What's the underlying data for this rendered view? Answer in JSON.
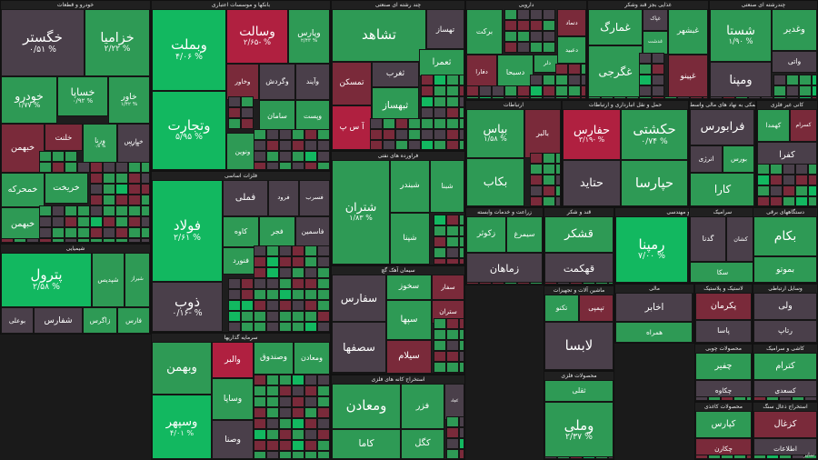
{
  "chart_data": {
    "type": "heatmap",
    "color_scale": {
      "deep_red": "#b02040",
      "red": "#7a2a3a",
      "neutral": "#4a3f4a",
      "green": "#2e9a55",
      "bright_green": "#12b860"
    },
    "sectors": [
      {
        "id": "auto",
        "title": "خودرو و قطعات",
        "stocks": [
          {
            "name": "خگستر",
            "pct": "۰/۵۱ %",
            "val": 0.51
          },
          {
            "name": "خزامیا",
            "pct": "۲/۲۲ %",
            "val": 2.22
          },
          {
            "name": "خساپا",
            "pct": "۰/۹۲ %",
            "val": 0.92
          },
          {
            "name": "خودرو",
            "pct": "۱/۷۷ %",
            "val": 1.77
          },
          {
            "name": "خاور",
            "pct": "۱/۴۲ %",
            "val": 1.42
          },
          {
            "name": "ورنا",
            "pct": "۰/۸ %",
            "val": 0.8
          },
          {
            "name": "خپارس",
            "pct": "۰/۶ %",
            "val": 0.6
          },
          {
            "name": "خبهمن",
            "pct": "",
            "val": -0.9
          },
          {
            "name": "خلنت",
            "pct": "",
            "val": -0.4
          },
          {
            "name": "خمحرکه",
            "pct": "",
            "val": 1.2
          },
          {
            "name": "خریخت",
            "pct": "",
            "val": 0.9
          },
          {
            "name": "خبهمن",
            "pct": "",
            "val": 1.1
          }
        ]
      },
      {
        "id": "chem",
        "title": "شیمیایی",
        "stocks": [
          {
            "name": "پترول",
            "pct": "۲/۵۸ %",
            "val": 2.58
          },
          {
            "name": "شپدیس",
            "pct": "",
            "val": 1.4
          },
          {
            "name": "شیراز",
            "pct": "",
            "val": 1.6
          },
          {
            "name": "بوعلی",
            "pct": "",
            "val": 0.2
          },
          {
            "name": "شفارس",
            "pct": "",
            "val": 0.3
          },
          {
            "name": "زاگرس",
            "pct": "",
            "val": 1.1
          },
          {
            "name": "فارس",
            "pct": "",
            "val": 1.3
          },
          {
            "name": "شاوان",
            "pct": "",
            "val": 1.5
          },
          {
            "name": "شیران",
            "pct": "",
            "val": 0.2
          },
          {
            "name": "شکلر",
            "pct": "",
            "val": -0.8
          }
        ]
      },
      {
        "id": "bank",
        "title": "بانکها و موسسات اعتباری",
        "stocks": [
          {
            "name": "وبملت",
            "pct": "۴/۰۶ %",
            "val": 4.06
          },
          {
            "name": "وسالت",
            "pct": "۲/۶۵- %",
            "val": -2.65
          },
          {
            "name": "وپارس",
            "pct": "۲/۴۳ %",
            "val": 2.43
          },
          {
            "name": "وتجارت",
            "pct": "۵/۹۵ %",
            "val": 5.95
          },
          {
            "name": "وخاور",
            "pct": "",
            "val": -0.6
          },
          {
            "name": "وگردش",
            "pct": "",
            "val": 0.2
          },
          {
            "name": "وآیند",
            "pct": "",
            "val": 0.3
          },
          {
            "name": "سامان",
            "pct": "",
            "val": 1.4
          },
          {
            "name": "ونوین",
            "pct": "",
            "val": 0.9
          },
          {
            "name": "وپست",
            "pct": "",
            "val": 1.6
          }
        ]
      },
      {
        "id": "metal",
        "title": "فلزات اساسی",
        "stocks": [
          {
            "name": "فولاد",
            "pct": "۲/۶۱ %",
            "val": 2.61
          },
          {
            "name": "فملی",
            "pct": "",
            "val": 0.3
          },
          {
            "name": "فرود",
            "pct": "",
            "val": 0.2
          },
          {
            "name": "فسرب",
            "pct": "",
            "val": 0.4
          },
          {
            "name": "ذوب",
            "pct": "۰/۱۶- %",
            "val": -0.16
          },
          {
            "name": "کاوه",
            "pct": "",
            "val": 1.6
          },
          {
            "name": "فجر",
            "pct": "",
            "val": 1.3
          },
          {
            "name": "فاسمین",
            "pct": "",
            "val": 0.5
          },
          {
            "name": "فنورد",
            "pct": "",
            "val": 1.1
          }
        ]
      },
      {
        "id": "invest",
        "title": "سرمایه گذاریها",
        "stocks": [
          {
            "name": "وبهمن",
            "pct": "",
            "val": 1.5
          },
          {
            "name": "والبر",
            "pct": "",
            "val": -2.2
          },
          {
            "name": "وصندوق",
            "pct": "",
            "val": 1.2
          },
          {
            "name": "ومعادن",
            "pct": "",
            "val": 1.6
          },
          {
            "name": "وسپهر",
            "pct": "۴/۰۱ %",
            "val": 4.01
          },
          {
            "name": "وساپا",
            "pct": "",
            "val": 0.9
          },
          {
            "name": "وخارزم",
            "pct": "",
            "val": 1.4
          },
          {
            "name": "وصنا",
            "pct": "",
            "val": 0.3
          }
        ]
      },
      {
        "id": "multi",
        "title": "چند رشته ای صنعتی",
        "stocks": [
          {
            "name": "تشاهد",
            "pct": "",
            "val": 1.4
          },
          {
            "name": "تهساز",
            "pct": "",
            "val": 0.3
          },
          {
            "name": "تمسکن",
            "pct": "",
            "val": -1.6
          },
          {
            "name": "ثغرب",
            "pct": "",
            "val": 0.2
          },
          {
            "name": "ثعمرا",
            "pct": "",
            "val": 1.2
          },
          {
            "name": "آ س پ",
            "pct": "",
            "val": -2.0
          },
          {
            "name": "ثبهساز",
            "pct": "",
            "val": 1.0
          }
        ]
      },
      {
        "id": "refine",
        "title": "فراورده های نفتی",
        "stocks": [
          {
            "name": "شتران",
            "pct": "۱/۸۳ %",
            "val": 1.83
          },
          {
            "name": "شبندر",
            "pct": "",
            "val": 1.3
          },
          {
            "name": "شبنا",
            "pct": "",
            "val": 1.6
          },
          {
            "name": "شپنا",
            "pct": "",
            "val": 1.4
          }
        ]
      },
      {
        "id": "cement",
        "title": "سیمان آهک گچ",
        "stocks": [
          {
            "name": "سفارس",
            "pct": "",
            "val": 0.4
          },
          {
            "name": "سخوز",
            "pct": "",
            "val": 1.0
          },
          {
            "name": "سفار",
            "pct": "",
            "val": -1.2
          },
          {
            "name": "ستران",
            "pct": "",
            "val": -1.0
          },
          {
            "name": "سصفها",
            "pct": "",
            "val": 0.3
          },
          {
            "name": "سپها",
            "pct": "",
            "val": 1.4
          },
          {
            "name": "سیلام",
            "pct": "",
            "val": -1.8
          }
        ]
      },
      {
        "id": "mining",
        "title": "استخراج کانه های فلزی",
        "stocks": [
          {
            "name": "ومعادن",
            "pct": "",
            "val": 1.4
          },
          {
            "name": "فزر",
            "pct": "",
            "val": 1.2
          },
          {
            "name": "کچاد",
            "pct": "",
            "val": 0.3
          },
          {
            "name": "کاما",
            "pct": "",
            "val": 1.1
          },
          {
            "name": "کگل",
            "pct": "",
            "val": 1.0
          }
        ]
      },
      {
        "id": "pharma",
        "title": "دارویی",
        "stocks": [
          {
            "name": "برکت",
            "pct": "",
            "val": 1.6
          },
          {
            "name": "دفارا",
            "pct": "",
            "val": -0.6
          },
          {
            "name": "دتماد",
            "pct": "",
            "val": -1.4
          },
          {
            "name": "دسبحا",
            "pct": "",
            "val": 1.2
          },
          {
            "name": "دلر",
            "pct": "",
            "val": 0.8
          },
          {
            "name": "دعبید",
            "pct": "",
            "val": 1.5
          }
        ]
      },
      {
        "id": "food",
        "title": "غذایی بجز قند وشکر",
        "stocks": [
          {
            "name": "غمارگ",
            "pct": "",
            "val": 1.1
          },
          {
            "name": "غپاک",
            "pct": "",
            "val": 0.6
          },
          {
            "name": "غبشهر",
            "pct": "",
            "val": 1.3
          },
          {
            "name": "غدشت",
            "pct": "",
            "val": 0.9
          },
          {
            "name": "غگرجی",
            "pct": "",
            "val": 1.4
          },
          {
            "name": "غپینو",
            "pct": "",
            "val": -0.4
          }
        ]
      },
      {
        "id": "oil",
        "title": "چندرشته ای صنعتی",
        "stocks": [
          {
            "name": "شستا",
            "pct": "۱/۹۰ %",
            "val": 1.9
          },
          {
            "name": "وغدیر",
            "pct": "",
            "val": 1.3
          },
          {
            "name": "واتی",
            "pct": "",
            "val": 0.4
          },
          {
            "name": "ومپنا",
            "pct": "",
            "val": 0.6
          }
        ]
      },
      {
        "id": "bulk",
        "title": "ارتباطات",
        "stocks": [
          {
            "name": "بپاس",
            "pct": "۱/۵۸ %",
            "val": 1.58
          },
          {
            "name": "بالبر",
            "pct": "",
            "val": -0.4
          },
          {
            "name": "بکاب",
            "pct": "",
            "val": 1.0
          }
        ]
      },
      {
        "id": "transport",
        "title": "حمل و نقل انبارداری و ارتباطات",
        "stocks": [
          {
            "name": "حفارس",
            "pct": "۳/۱۹- %",
            "val": -3.19
          },
          {
            "name": "حکشتی",
            "pct": "۰/۷۴ %",
            "val": 0.74
          },
          {
            "name": "حتاید",
            "pct": "",
            "val": 0.3
          },
          {
            "name": "حپارسا",
            "pct": "",
            "val": 1.2
          }
        ]
      },
      {
        "id": "computer",
        "title": "فعالیتهای کمکی به نهاد های مالی واسط",
        "stocks": [
          {
            "name": "فرابورس",
            "pct": "",
            "val": 0.6
          },
          {
            "name": "انرژی",
            "pct": "",
            "val": 0.2
          },
          {
            "name": "بورس",
            "pct": "",
            "val": 0.9
          },
          {
            "name": "کارا",
            "pct": "",
            "val": 1.3
          }
        ]
      },
      {
        "id": "tech",
        "title": "کانی غیر فلزی",
        "stocks": [
          {
            "name": "کهمدا",
            "pct": "",
            "val": 1.4
          },
          {
            "name": "کسرام",
            "pct": "",
            "val": -1.1
          },
          {
            "name": "کفرا",
            "pct": "",
            "val": 0.4
          }
        ]
      },
      {
        "id": "engineering",
        "title": "فنی و مهندسی",
        "stocks": [
          {
            "name": "رمپنا",
            "pct": "۷/۰۰ %",
            "val": 7.0
          },
          {
            "name": "کگاز",
            "pct": "",
            "val": 1.1
          },
          {
            "name": "کلاوه",
            "pct": "",
            "val": 0.9
          },
          {
            "name": "کحافظ",
            "pct": "",
            "val": 1.5
          }
        ]
      },
      {
        "id": "ceramic",
        "title": "سرامیک ",
        "stocks": [
          {
            "name": "گدنا",
            "pct": "",
            "val": 0.3
          },
          {
            "name": "کشان",
            "pct": "",
            "val": 0.2
          },
          {
            "name": "سکا",
            "pct": "",
            "val": 1.3
          }
        ]
      },
      {
        "id": "electronic",
        "title": "دستگاههای برقی",
        "stocks": [
          {
            "name": "بکام",
            "pct": "",
            "val": 1.5
          },
          {
            "name": "بموتو",
            "pct": "",
            "val": 0.8
          }
        ]
      },
      {
        "id": "media",
        "title": "زراعت و خدمات وابسته",
        "stocks": [
          {
            "name": "زکوثر",
            "pct": "",
            "val": 1.2
          },
          {
            "name": "سیمرغ",
            "pct": "",
            "val": 1.0
          },
          {
            "name": "زماهان",
            "pct": "",
            "val": 0.6
          }
        ]
      },
      {
        "id": "sugar",
        "title": "قند و شکر",
        "stocks": [
          {
            "name": "قشکر",
            "pct": "",
            "val": 0.9
          },
          {
            "name": "قهکمت",
            "pct": "",
            "val": 0.4
          }
        ]
      },
      {
        "id": "contract",
        "title": "مالی",
        "stocks": [
          {
            "name": "اخابر",
            "pct": "",
            "val": 0.2
          },
          {
            "name": "همراه",
            "pct": "",
            "val": 1.2
          }
        ]
      },
      {
        "id": "plastic",
        "title": "لاستیک و پلاستیک",
        "stocks": [
          {
            "name": "پکرمان",
            "pct": "",
            "val": -1.2
          },
          {
            "name": "پاسا",
            "pct": "",
            "val": 0.4
          }
        ]
      },
      {
        "id": "machinery",
        "title": "ماشین آلات و تجهیزات",
        "stocks": [
          {
            "name": "تکنو",
            "pct": "",
            "val": 1.3
          },
          {
            "name": "تپمپی",
            "pct": "",
            "val": -1.0
          },
          {
            "name": "لابسا",
            "pct": "",
            "val": 0.3
          }
        ]
      },
      {
        "id": "paper",
        "title": "وسایل ارتباطی",
        "stocks": [
          {
            "name": "ولی",
            "pct": "",
            "val": 0.6
          },
          {
            "name": "رتاپ",
            "pct": "",
            "val": 0.3
          }
        ]
      },
      {
        "id": "fin",
        "title": "محصولات فلزی",
        "stocks": [
          {
            "name": "ثقلی",
            "pct": "",
            "val": 0.9
          },
          {
            "name": "وملی",
            "pct": "۲/۳۷ %",
            "val": 2.37
          }
        ]
      },
      {
        "id": "woods",
        "title": "محصولات چوبی",
        "stocks": [
          {
            "name": "چفیر",
            "pct": "",
            "val": 1.4
          },
          {
            "name": "چکاوه",
            "pct": "",
            "val": 0.4
          }
        ]
      },
      {
        "id": "tile",
        "title": "کاشی و سرامیک",
        "stocks": [
          {
            "name": "کترام",
            "pct": "",
            "val": 1.3
          },
          {
            "name": "کسعدی",
            "pct": "",
            "val": 0.5
          }
        ]
      },
      {
        "id": "textile",
        "title": "محصولات کاغذی",
        "stocks": [
          {
            "name": "کپارس",
            "pct": "",
            "val": 0.7
          },
          {
            "name": "چکارن",
            "pct": "",
            "val": -1.2
          }
        ]
      },
      {
        "id": "mining2",
        "title": "استخراج ذغال سنگ",
        "stocks": [
          {
            "name": "کزغال",
            "pct": "",
            "val": -1.2
          },
          {
            "name": "اطلاعات",
            "pct": "",
            "val": 0.3
          }
        ]
      }
    ]
  },
  "footer": {
    "misc_label": "سایر"
  }
}
